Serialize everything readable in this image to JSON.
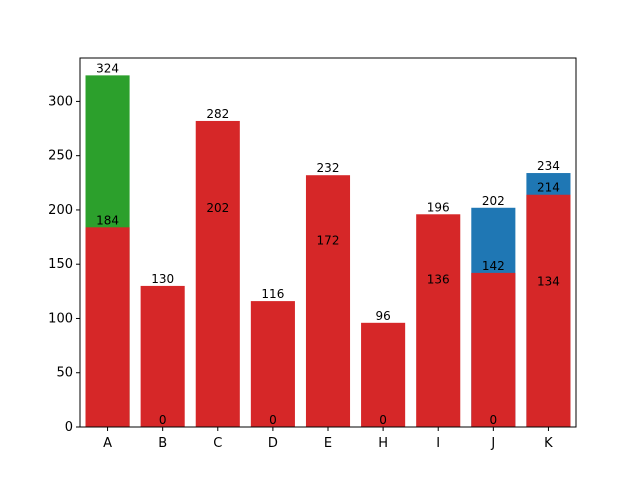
{
  "chart_data": {
    "type": "bar",
    "title": "",
    "xlabel": "",
    "ylabel": "",
    "categories": [
      "A",
      "B",
      "C",
      "D",
      "E",
      "H",
      "I",
      "J",
      "K"
    ],
    "ylim": [
      0,
      340
    ],
    "yticks": [
      0,
      50,
      100,
      150,
      200,
      250,
      300
    ],
    "grid": false,
    "stacked_overlay": true,
    "series": [
      {
        "color": "#2ca02c",
        "values": [
          324,
          null,
          null,
          null,
          null,
          null,
          null,
          null,
          null
        ]
      },
      {
        "color": "#1f77b4",
        "values": [
          null,
          null,
          null,
          null,
          null,
          null,
          null,
          202,
          234
        ]
      },
      {
        "color": "#d62728",
        "values": [
          184,
          130,
          282,
          116,
          232,
          96,
          196,
          142,
          214
        ]
      }
    ],
    "data_labels": {
      "top": [
        "324",
        "130",
        "282",
        "116",
        "232",
        "96",
        "196",
        "202",
        "234"
      ],
      "upper": [
        "184",
        "",
        "",
        "",
        "",
        "",
        "",
        "142",
        "214"
      ],
      "mid": [
        "",
        "0",
        "202",
        "0",
        "172",
        "0",
        "136",
        "0",
        "134"
      ],
      "mid_values": [
        null,
        0,
        202,
        0,
        172,
        0,
        136,
        0,
        134
      ]
    }
  }
}
